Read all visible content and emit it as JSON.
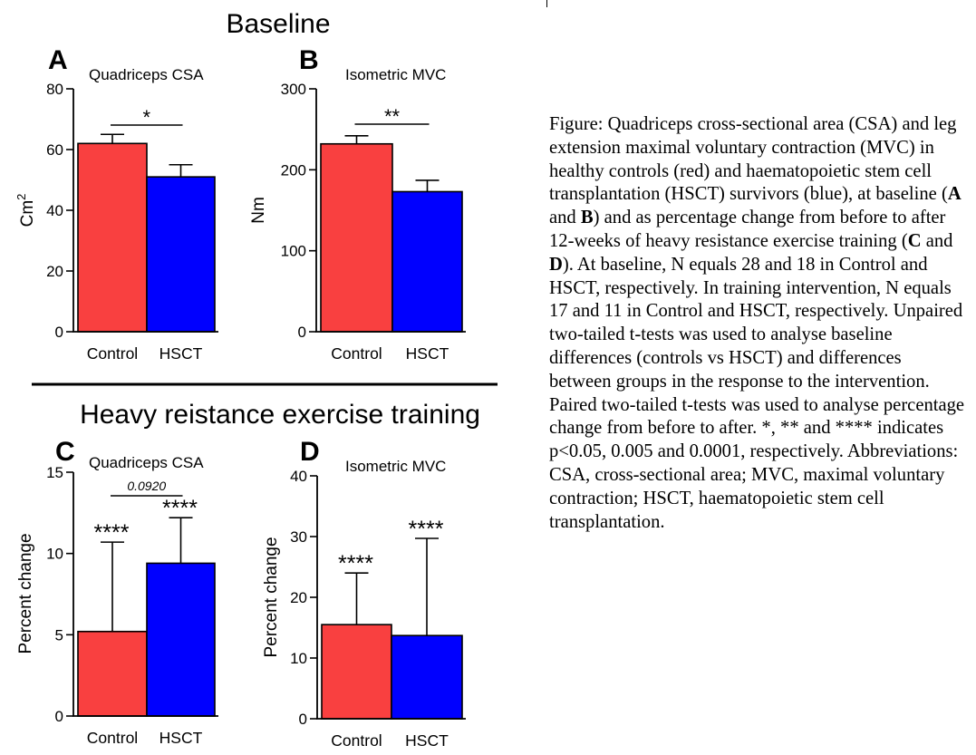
{
  "figure": {
    "section_top": "Baseline",
    "section_bottom": "Heavy reistance exercise training"
  },
  "caption": {
    "segments": [
      {
        "text": "Figure: Quadriceps cross-sectional area (CSA) and leg extension maximal voluntary contraction (MVC) in healthy controls (red) and haematopoietic stem cell transplantation (HSCT) survivors (blue), at baseline (",
        "bold": false
      },
      {
        "text": "A",
        "bold": true
      },
      {
        "text": " and ",
        "bold": false
      },
      {
        "text": "B",
        "bold": true
      },
      {
        "text": ") and as percentage change from before to after 12-weeks of heavy resistance exercise training (",
        "bold": false
      },
      {
        "text": "C",
        "bold": true
      },
      {
        "text": " and ",
        "bold": false
      },
      {
        "text": "D",
        "bold": true
      },
      {
        "text": "). At baseline, N equals 28 and 18 in Control and HSCT, respectively. In training intervention, N equals 17 and 11 in Control and HSCT, respectively. Unpaired two-tailed t-tests was used to analyse baseline differences (controls vs HSCT) and differences between groups in the response to the intervention. Paired two-tailed t-tests was used to analyse percentage change from before to after. *, ** and **** indicates p<0.05, 0.005 and 0.0001, respectively. Abbreviations: CSA, cross-sectional area; MVC, maximal voluntary contraction; HSCT, haematopoietic stem cell transplantation.",
        "bold": false
      }
    ]
  },
  "colors": {
    "control": "#f94040",
    "hsct": "#0000ff"
  },
  "chart_data": [
    {
      "panel": "A",
      "type": "bar",
      "title": "Quadriceps CSA",
      "ylabel": "Cm",
      "ylabel_sup": "2",
      "categories": [
        "Control",
        "HSCT"
      ],
      "values": [
        62,
        51
      ],
      "errors": [
        3,
        4
      ],
      "ylim": [
        0,
        80
      ],
      "yticks": [
        0,
        20,
        40,
        60,
        80
      ],
      "bar_stars": [
        "",
        ""
      ],
      "comparison": {
        "label": "*",
        "italic": false
      }
    },
    {
      "panel": "B",
      "type": "bar",
      "title": "Isometric MVC",
      "ylabel": "Nm",
      "ylabel_sup": "",
      "categories": [
        "Control",
        "HSCT"
      ],
      "values": [
        232,
        173
      ],
      "errors": [
        10,
        14
      ],
      "ylim": [
        0,
        300
      ],
      "yticks": [
        0,
        100,
        200,
        300
      ],
      "bar_stars": [
        "",
        ""
      ],
      "comparison": {
        "label": "**",
        "italic": false
      }
    },
    {
      "panel": "C",
      "type": "bar",
      "title": "Quadriceps CSA",
      "ylabel": "Percent change",
      "ylabel_sup": "",
      "categories": [
        "Control",
        "HSCT"
      ],
      "values": [
        5.2,
        9.4
      ],
      "errors": [
        5.5,
        2.8
      ],
      "ylim": [
        0,
        15
      ],
      "yticks": [
        0,
        5,
        10,
        15
      ],
      "bar_stars": [
        "****",
        "****"
      ],
      "comparison": {
        "label": "0.0920",
        "italic": true
      }
    },
    {
      "panel": "D",
      "type": "bar",
      "title": "Isometric MVC",
      "ylabel": "Percent change",
      "ylabel_sup": "",
      "categories": [
        "Control",
        "HSCT"
      ],
      "values": [
        15.5,
        13.7
      ],
      "errors": [
        8.5,
        16
      ],
      "ylim": [
        0,
        40
      ],
      "yticks": [
        0,
        10,
        20,
        30,
        40
      ],
      "bar_stars": [
        "****",
        "****"
      ],
      "comparison": null
    }
  ]
}
